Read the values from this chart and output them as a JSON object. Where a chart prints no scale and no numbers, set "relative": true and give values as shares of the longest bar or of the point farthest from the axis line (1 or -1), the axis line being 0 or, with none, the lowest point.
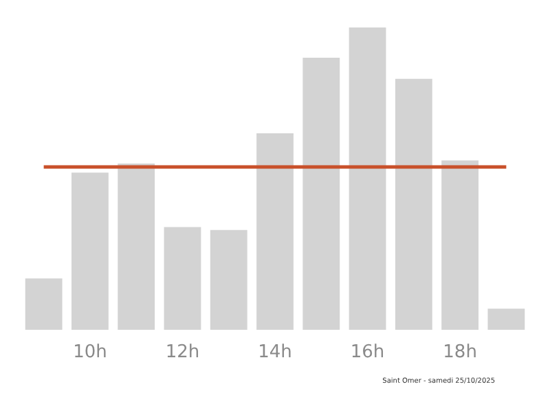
{
  "chart_data": {
    "type": "bar",
    "relative": true,
    "categories": [
      null,
      "10h",
      null,
      "12h",
      null,
      "14h",
      null,
      "16h",
      null,
      "18h",
      null
    ],
    "values": [
      0.17,
      0.52,
      0.55,
      0.34,
      0.33,
      0.65,
      0.9,
      1,
      0.83,
      0.56,
      0.07
    ],
    "color": "#d3d3d3",
    "ref_lines": [
      {
        "axis": "y",
        "value": 0.54,
        "color": "#c8502a"
      }
    ],
    "annotations": [
      "Saint Omer - samedi 25/10/2025"
    ],
    "grid": false
  }
}
